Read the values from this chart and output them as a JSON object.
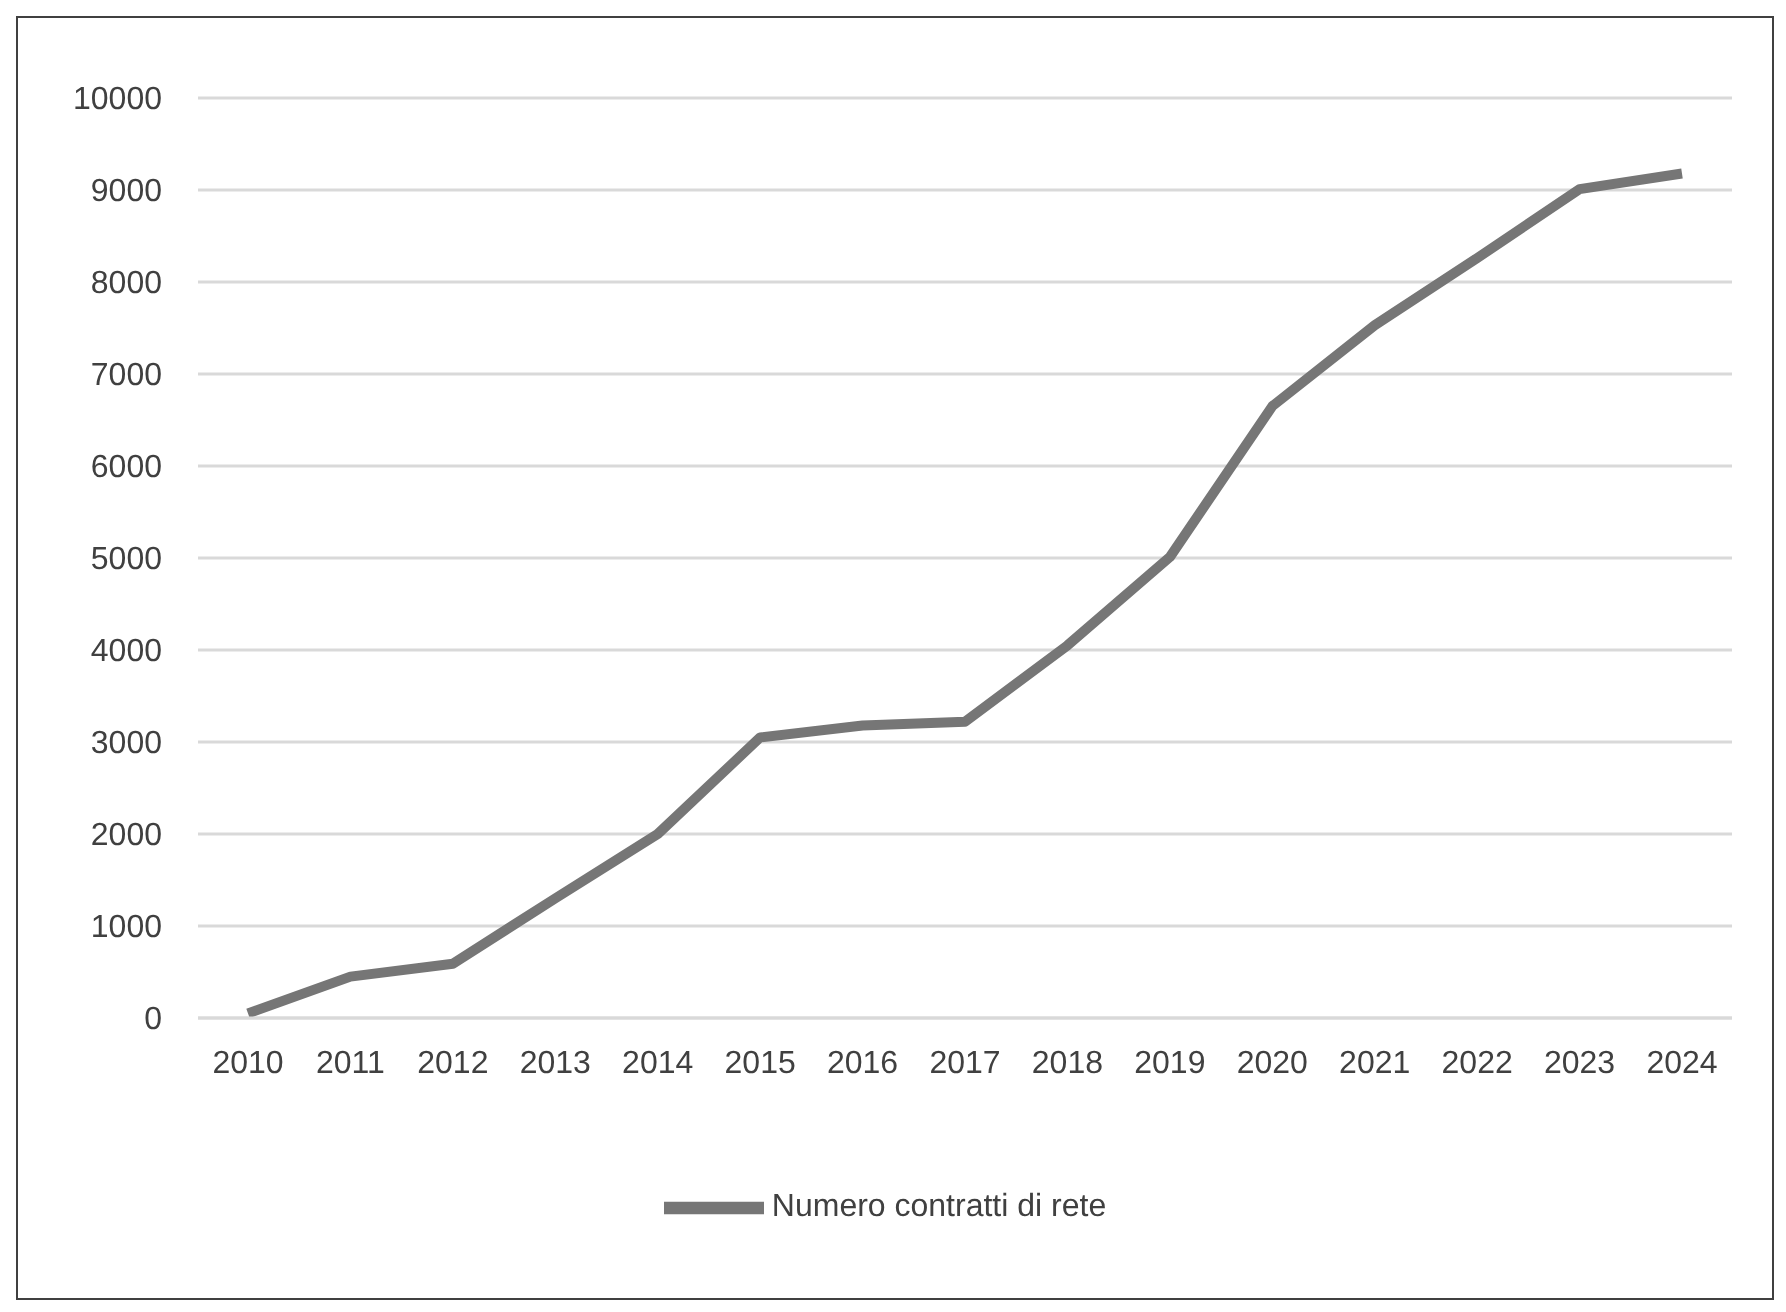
{
  "chart_data": {
    "type": "line",
    "categories": [
      "2010",
      "2011",
      "2012",
      "2013",
      "2014",
      "2015",
      "2016",
      "2017",
      "2018",
      "2019",
      "2020",
      "2021",
      "2022",
      "2023",
      "2024"
    ],
    "series": [
      {
        "name": "Numero contratti di rete",
        "color": "#767676",
        "values": [
          50,
          450,
          590,
          1300,
          2000,
          3050,
          3180,
          3220,
          4050,
          5010,
          6650,
          7530,
          8260,
          9010,
          9180
        ]
      }
    ],
    "ylim": [
      0,
      10000
    ],
    "yticks": [
      0,
      1000,
      2000,
      3000,
      4000,
      5000,
      6000,
      7000,
      8000,
      9000,
      10000
    ],
    "grid": "y",
    "legend": "bottom",
    "marker": "none",
    "line_style": "solid"
  }
}
